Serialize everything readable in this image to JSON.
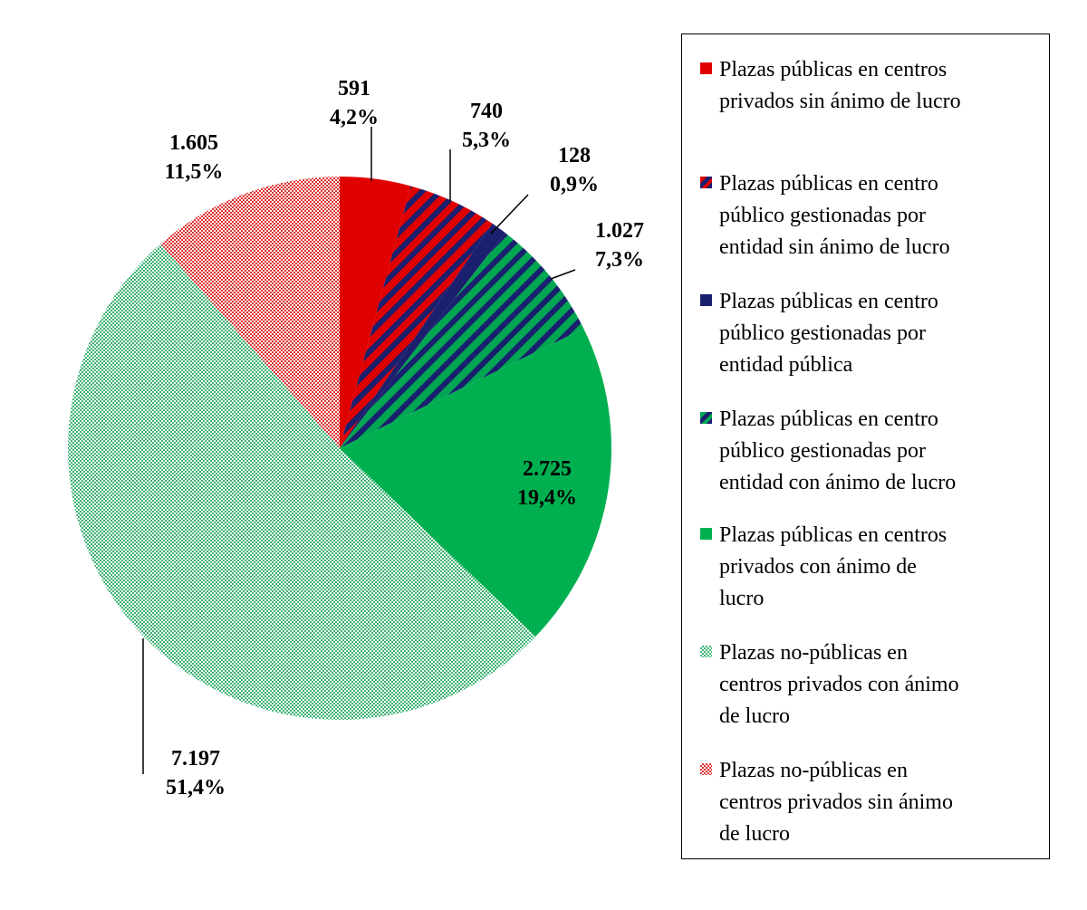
{
  "chart_data": {
    "type": "pie",
    "slices": [
      {
        "name": "Plazas públicas en centros privados sin ánimo de lucro",
        "value": 591,
        "value_label": "591",
        "percent_label": "4,2%",
        "color": "#e00000",
        "pattern": "solid"
      },
      {
        "name": "Plazas públicas en centro público gestionadas por entidad sin ánimo de lucro",
        "value": 740,
        "value_label": "740",
        "percent_label": "5,3%",
        "color": "#e00000",
        "pattern": "diagonal-stripes-navy"
      },
      {
        "name": "Plazas públicas en centro público gestionadas por entidad pública",
        "value": 128,
        "value_label": "128",
        "percent_label": "0,9%",
        "color": "#1a1f6e",
        "pattern": "solid"
      },
      {
        "name": "Plazas públicas en centro público gestionadas por entidad con ánimo de lucro",
        "value": 1027,
        "value_label": "1.027",
        "percent_label": "7,3%",
        "color": "#00a651",
        "pattern": "diagonal-stripes-navy"
      },
      {
        "name": "Plazas públicas en centros privados con ánimo de lucro",
        "value": 2725,
        "value_label": "2.725",
        "percent_label": "19,4%",
        "color": "#00b050",
        "pattern": "solid"
      },
      {
        "name": "Plazas no-públicas en centros privados con ánimo de lucro",
        "value": 7197,
        "value_label": "7.197",
        "percent_label": "51,4%",
        "color": "#3cb371",
        "pattern": "dotted"
      },
      {
        "name": "Plazas no-públicas en centros privados sin ánimo de lucro",
        "value": 1605,
        "value_label": "1.605",
        "percent_label": "11,5%",
        "color": "#e03030",
        "pattern": "dotted"
      }
    ],
    "legend_position": "right",
    "start_angle": "12 o'clock, clockwise"
  },
  "legend": {
    "items": [
      {
        "lines": [
          "Plazas públicas en centros",
          "privados sin ánimo de lucro"
        ]
      },
      {
        "lines": [
          "Plazas públicas en centro",
          "público gestionadas por",
          "entidad sin ánimo de lucro"
        ]
      },
      {
        "lines": [
          "Plazas públicas en centro",
          "público gestionadas por",
          "entidad pública"
        ]
      },
      {
        "lines": [
          "Plazas públicas en centro",
          "público gestionadas por",
          "entidad con ánimo de lucro"
        ]
      },
      {
        "lines": [
          "Plazas públicas en centros",
          "privados con ánimo de",
          "lucro"
        ]
      },
      {
        "lines": [
          "Plazas no-públicas en",
          "centros privados con ánimo",
          "de lucro"
        ]
      },
      {
        "lines": [
          "Plazas no-públicas en",
          "centros privados sin ánimo",
          "de lucro"
        ]
      }
    ]
  }
}
